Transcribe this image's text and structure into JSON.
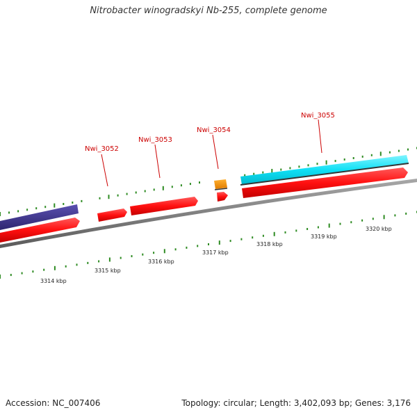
{
  "title": "Nitrobacter winogradskyi Nb-255, complete genome",
  "footer": {
    "accession": "Accession: NC_007406",
    "summary": "Topology: circular; Length: 3,402,093 bp; Genes: 3,176"
  },
  "genes": [
    {
      "label": "Nwi_3052"
    },
    {
      "label": "Nwi_3053"
    },
    {
      "label": "Nwi_3054"
    },
    {
      "label": "Nwi_3055"
    }
  ],
  "scale": [
    {
      "label": "3314 kbp"
    },
    {
      "label": "3315 kbp"
    },
    {
      "label": "3316 kbp"
    },
    {
      "label": "3317 kbp"
    },
    {
      "label": "3318 kbp"
    },
    {
      "label": "3319 kbp"
    },
    {
      "label": "3320 kbp"
    }
  ],
  "colors": {
    "forward_cds": "#3a2f8a",
    "reverse_cds": "#ff1a1a",
    "rna": "#f59a00",
    "highlight": "#00e5ff",
    "backbone": "#7a7a7a",
    "ticks": "#2e8b22"
  }
}
